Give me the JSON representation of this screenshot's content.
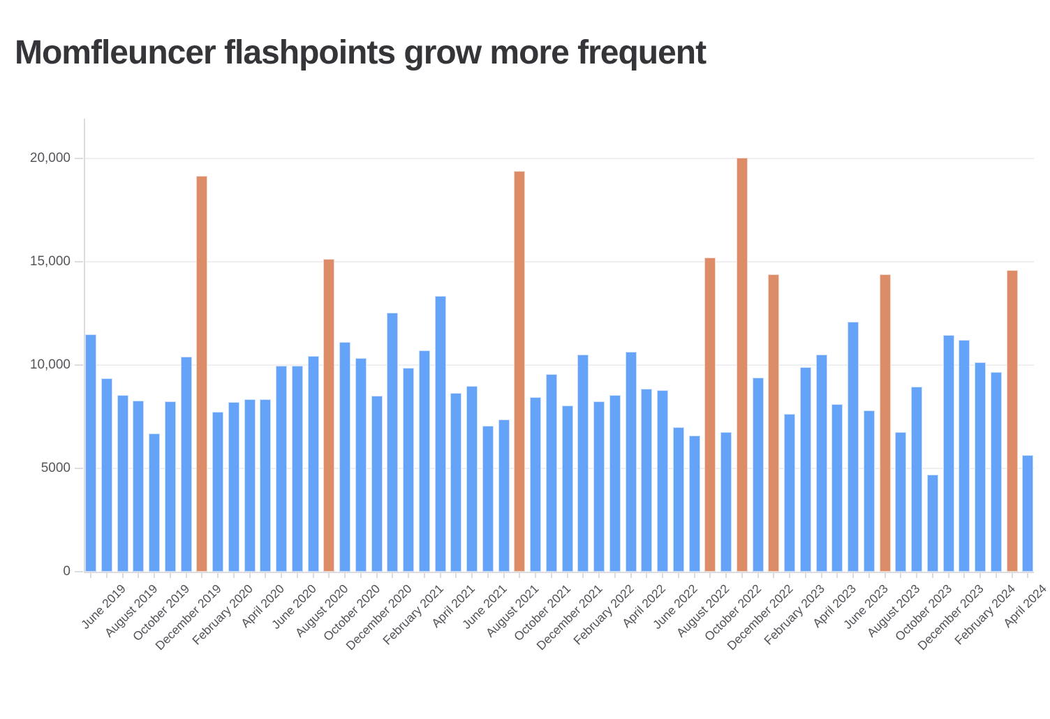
{
  "title": "Momfleuncer flashpoints grow more frequent",
  "colors": {
    "bar_blue": "#64A3F8",
    "bar_orange": "#DD8C68",
    "title_text": "#343439",
    "axis_text": "#55555B",
    "x_label_text": "#515158",
    "axis_line": "#DCDCE0",
    "gridline": "#EFEFF1",
    "background": "#FFFFFF"
  },
  "y_axis": {
    "tick_values": [
      0,
      5000,
      10000,
      15000,
      20000
    ],
    "tick_labels": [
      "0",
      "5000",
      "10,000",
      "15,000",
      "20,000"
    ]
  },
  "chart_data": {
    "type": "bar",
    "title": "Momfleuncer flashpoints grow more frequent",
    "xlabel": "",
    "ylabel": "",
    "ylim": [
      0,
      21900
    ],
    "gridlines": "horizontal",
    "legend": "none",
    "x": [
      "May 2019",
      "June 2019",
      "July 2019",
      "August 2019",
      "September 2019",
      "October 2019",
      "November 2019",
      "December 2019",
      "January 2020",
      "February 2020",
      "March 2020",
      "April 2020",
      "May 2020",
      "June 2020",
      "July 2020",
      "August 2020",
      "September 2020",
      "October 2020",
      "November 2020",
      "December 2020",
      "January 2021",
      "February 2021",
      "March 2021",
      "April 2021",
      "May 2021",
      "June 2021",
      "July 2021",
      "August 2021",
      "September 2021",
      "October 2021",
      "November 2021",
      "December 2021",
      "January 2022",
      "February 2022",
      "March 2022",
      "April 2022",
      "May 2022",
      "June 2022",
      "July 2022",
      "August 2022",
      "September 2022",
      "October 2022",
      "November 2022",
      "December 2022",
      "January 2023",
      "February 2023",
      "March 2023",
      "April 2023",
      "May 2023",
      "June 2023",
      "July 2023",
      "August 2023",
      "September 2023",
      "October 2023",
      "November 2023",
      "December 2023",
      "January 2024",
      "February 2024",
      "March 2024",
      "April 2024"
    ],
    "values": [
      11500,
      9350,
      8550,
      8280,
      6700,
      8250,
      10400,
      19150,
      7750,
      8200,
      8350,
      8350,
      9950,
      9950,
      10450,
      15150,
      11100,
      10350,
      8500,
      12550,
      9850,
      10700,
      13350,
      8650,
      9000,
      7050,
      7350,
      19400,
      8450,
      9550,
      8050,
      10500,
      8250,
      8550,
      10650,
      8850,
      8800,
      7000,
      6600,
      15200,
      6750,
      20050,
      9400,
      14400,
      7650,
      9900,
      10500,
      8100,
      12100,
      7800,
      14400,
      6750,
      8950,
      4700,
      11450,
      11200,
      10150,
      9650,
      14600,
      5650
    ],
    "highlight_months": [
      "December 2019",
      "August 2020",
      "August 2021",
      "August 2022",
      "October 2022",
      "December 2022",
      "July 2023",
      "March 2024"
    ],
    "x_tick_labels": [
      "June 2019",
      "August 2019",
      "October 2019",
      "December 2019",
      "February 2020",
      "April 2020",
      "June 2020",
      "August 2020",
      "October 2020",
      "December 2020",
      "February 2021",
      "April 2021",
      "June 2021",
      "August 2021",
      "October 2021",
      "December 2021",
      "February 2022",
      "April 2022",
      "June 2022",
      "August 2022",
      "October 2022",
      "December 2022",
      "February 2023",
      "April 2023",
      "June 2023",
      "August 2023",
      "October 2023",
      "December 2023",
      "February 2024",
      "April 2024"
    ],
    "bar_colors": {
      "default": "#64A3F8",
      "highlight": "#DD8C68"
    }
  }
}
